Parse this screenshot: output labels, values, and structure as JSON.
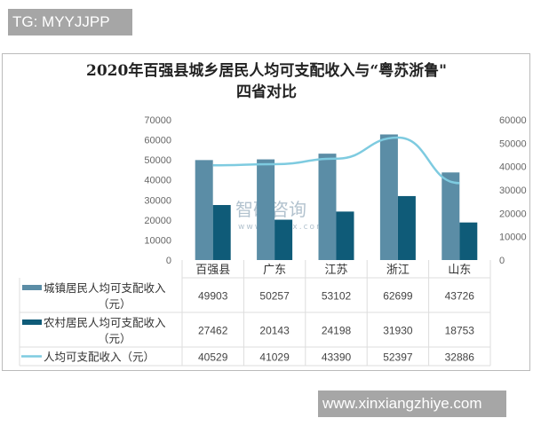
{
  "tag": "TG: MYYJJPP",
  "site": "www.xinxiangzhiye.com",
  "watermark": "智研咨询",
  "watermark_url": "www.chyxx.com",
  "chart_data": {
    "type": "bar",
    "title_line1": "2020年百强县城乡居民人均可支配收入与“粤苏浙鲁\"",
    "title_line2": "四省对比",
    "categories": [
      "百强县",
      "广东",
      "江苏",
      "浙江",
      "山东"
    ],
    "left_axis": {
      "ylim": [
        0,
        70000
      ],
      "ticks": [
        0,
        10000,
        20000,
        30000,
        40000,
        50000,
        60000,
        70000
      ]
    },
    "right_axis": {
      "ylim": [
        0,
        60000
      ],
      "ticks": [
        0,
        10000,
        20000,
        30000,
        40000,
        50000,
        60000
      ]
    },
    "series": [
      {
        "name": "城镇居民人均可支配收入（元）",
        "type": "bar",
        "axis": "left",
        "color": "#5b8da6",
        "values": [
          49903,
          50257,
          53102,
          62699,
          43726
        ]
      },
      {
        "name": "农村居民人均可支配收入（元）",
        "type": "bar",
        "axis": "left",
        "color": "#0f5b78",
        "values": [
          27462,
          20143,
          24198,
          31930,
          18753
        ]
      },
      {
        "name": "人均可支配收入（元）",
        "type": "line",
        "axis": "right",
        "color": "#7ecbe0",
        "values": [
          40529,
          41029,
          43390,
          52397,
          32886
        ]
      }
    ],
    "legend": "data-table"
  }
}
